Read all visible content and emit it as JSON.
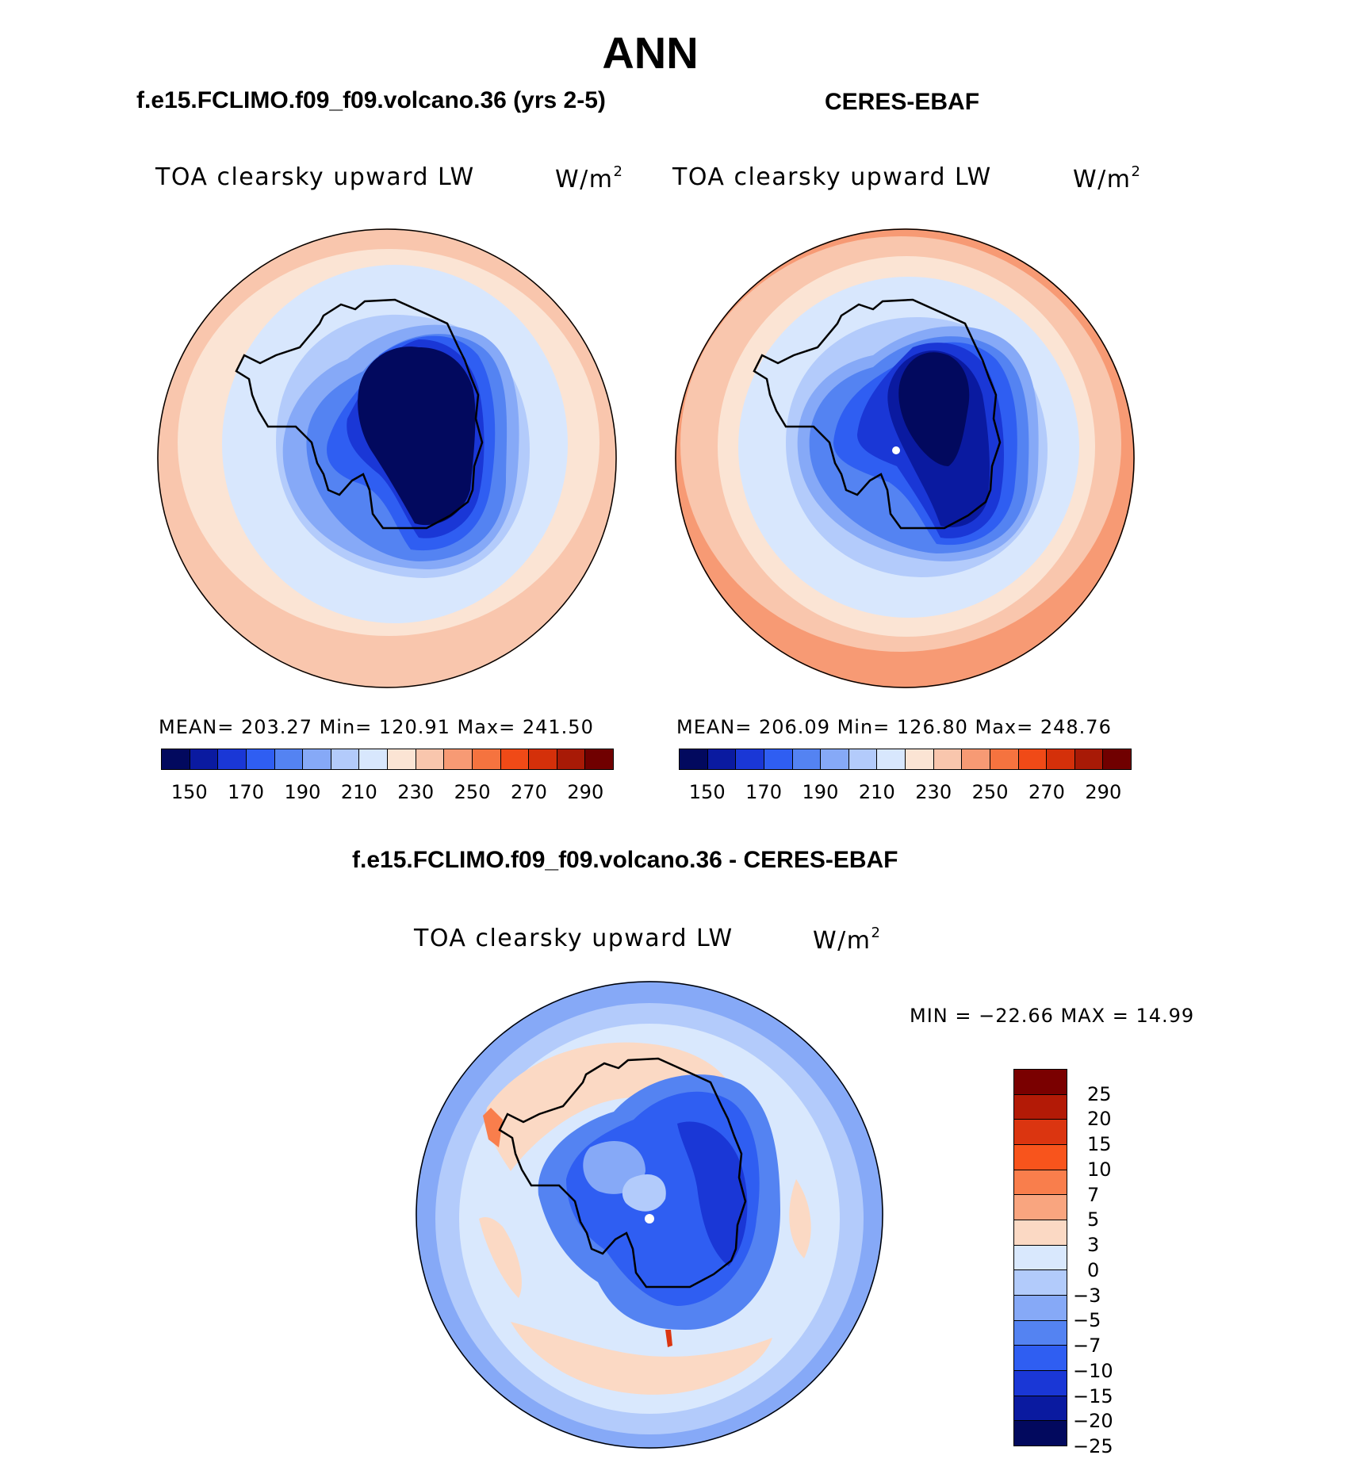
{
  "figure": {
    "season": "ANN"
  },
  "panels": [
    {
      "title": "f.e15.FCLIMO.f09_f09.volcano.36 (yrs 2-5)",
      "variable": "TOA clearsky upward LW",
      "units": "W/m",
      "units_exp": "2",
      "stats": "MEAN= 203.27   Min= 120.91   Max= 241.50",
      "colorbar_ticks": [
        "150",
        "170",
        "190",
        "210",
        "230",
        "250",
        "270",
        "290"
      ]
    },
    {
      "title": "CERES-EBAF",
      "variable": "TOA clearsky upward LW",
      "units": "W/m",
      "units_exp": "2",
      "stats": "MEAN= 206.09   Min= 126.80   Max= 248.76",
      "colorbar_ticks": [
        "150",
        "170",
        "190",
        "210",
        "230",
        "250",
        "270",
        "290"
      ]
    }
  ],
  "diff_panel": {
    "title": "f.e15.FCLIMO.f09_f09.volcano.36 - CERES-EBAF",
    "variable": "TOA clearsky upward LW",
    "units": "W/m",
    "units_exp": "2",
    "minmax": "MIN = −22.66 MAX =   14.99",
    "colorbar_ticks": [
      "25",
      "20",
      "15",
      "10",
      "7",
      "5",
      "3",
      "0",
      "−3",
      "−5",
      "−7",
      "−10",
      "−15",
      "−20",
      "−25"
    ]
  },
  "colors": {
    "abs_scale": [
      "#02095e",
      "#0a1aa0",
      "#1a37d6",
      "#2f5ef2",
      "#5483f2",
      "#86a9f7",
      "#b3cbfb",
      "#d8e7fd",
      "#fbe4d4",
      "#f9c6ad",
      "#f79a74",
      "#f5733f",
      "#f04a17",
      "#d4300a",
      "#a81a06",
      "#700000"
    ],
    "diff_scale": [
      "#7a0000",
      "#b31a06",
      "#db3510",
      "#f8541c",
      "#f97e4c",
      "#f9a57f",
      "#fbd9c4",
      "#d9e8fd",
      "#b2cbfb",
      "#86a9f7",
      "#5483f2",
      "#2f5ef2",
      "#1a37d6",
      "#0a1aa0",
      "#02095e"
    ]
  },
  "chart_data": [
    {
      "type": "heatmap",
      "title": "f.e15.FCLIMO.f09_f09.volcano.36 (yrs 2-5)",
      "projection": "south polar stereographic",
      "variable": "TOA clearsky upward LW",
      "units": "W/m2",
      "mean": 203.27,
      "min": 120.91,
      "max": 241.5,
      "contour_levels": [
        140,
        150,
        160,
        170,
        180,
        190,
        200,
        210,
        220,
        230,
        240,
        250,
        260,
        270,
        280,
        290
      ]
    },
    {
      "type": "heatmap",
      "title": "CERES-EBAF",
      "projection": "south polar stereographic",
      "variable": "TOA clearsky upward LW",
      "units": "W/m2",
      "mean": 206.09,
      "min": 126.8,
      "max": 248.76,
      "contour_levels": [
        140,
        150,
        160,
        170,
        180,
        190,
        200,
        210,
        220,
        230,
        240,
        250,
        260,
        270,
        280,
        290
      ]
    },
    {
      "type": "heatmap",
      "title": "f.e15.FCLIMO.f09_f09.volcano.36 - CERES-EBAF",
      "projection": "south polar stereographic",
      "variable": "TOA clearsky upward LW",
      "units": "W/m2",
      "min": -22.66,
      "max": 14.99,
      "contour_levels": [
        -25,
        -20,
        -15,
        -10,
        -7,
        -5,
        -3,
        0,
        3,
        5,
        7,
        10,
        15,
        20,
        25
      ]
    }
  ]
}
